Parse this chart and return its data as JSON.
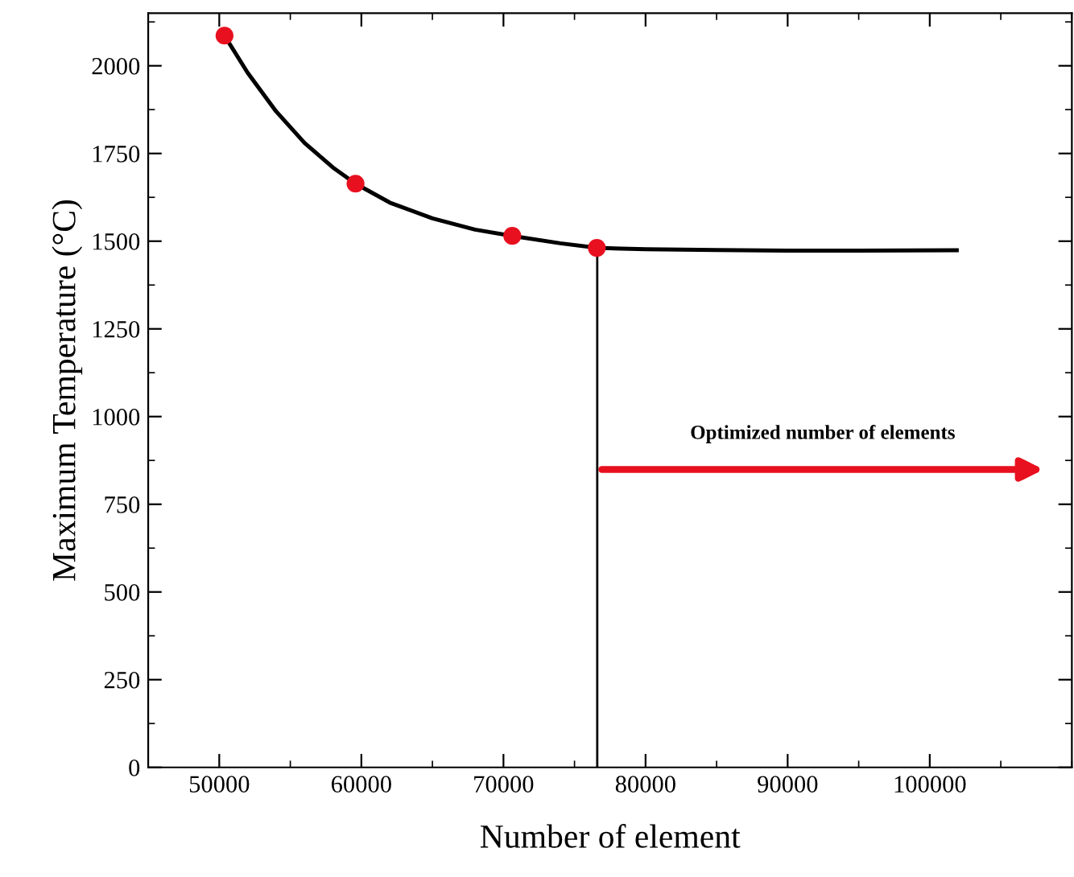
{
  "chart_data": {
    "type": "scatter",
    "xlabel": "Number of element",
    "ylabel": "Maximum Temperature (°C)",
    "xlim": [
      45000,
      110000
    ],
    "xticks": [
      50000,
      60000,
      70000,
      80000,
      90000,
      100000
    ],
    "ylim": [
      0,
      2150
    ],
    "yticks": [
      0,
      250,
      500,
      750,
      1000,
      1250,
      1500,
      1750,
      2000
    ],
    "grid": false,
    "legend": false,
    "series": [
      {
        "type": "line",
        "color": "#000000",
        "x": [
          50370,
          52000,
          54000,
          56000,
          58000,
          59590,
          62000,
          65000,
          68000,
          70620,
          74000,
          76570,
          80000,
          85000,
          90000,
          95000,
          101900
        ],
        "values": [
          2086,
          1980,
          1870,
          1780,
          1710,
          1664,
          1610,
          1565,
          1533,
          1515,
          1494,
          1481,
          1477,
          1475,
          1473,
          1473,
          1474
        ]
      },
      {
        "color": "#e8101f",
        "marker": "circle",
        "x": [
          50370,
          59590,
          70620,
          76570
        ],
        "values": [
          2086,
          1664,
          1515,
          1481
        ]
      }
    ],
    "ref_lines": [
      {
        "axis": "x",
        "value": 76600,
        "color": "#000000",
        "line_style": "solid"
      }
    ],
    "annotations": [
      "Optimized number of elements"
    ]
  }
}
